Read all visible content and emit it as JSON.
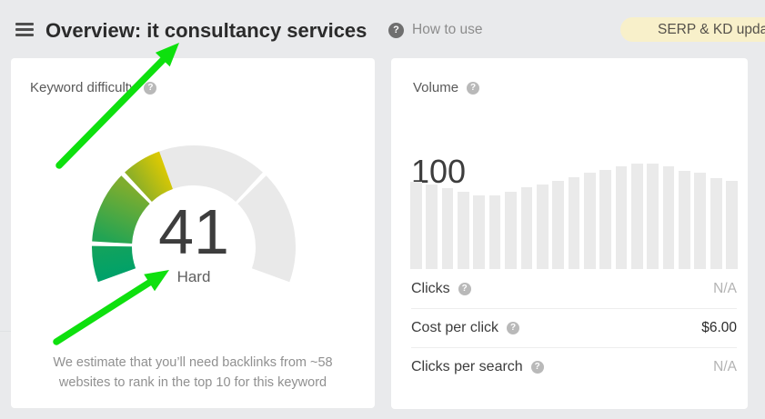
{
  "header": {
    "title": "Overview: it consultancy services",
    "help_label": "How to use",
    "update_button_label": "SERP & KD updat",
    "update_button_bg": "#f8f0ca"
  },
  "icons": {
    "question": "?"
  },
  "annotations": {
    "arrow_color": "#0ee00e"
  },
  "kd_card": {
    "label": "Keyword difficulty",
    "footnote_line1": "We estimate that you’ll need backlinks from ~58",
    "footnote_line2": "websites to rank in the top 10 for this keyword"
  },
  "gauge": {
    "type": "gauge",
    "value": 41,
    "display_value": "41",
    "max": 100,
    "label": "Hard",
    "segment_boundaries": [
      10,
      30,
      70
    ],
    "start_angle_deg": 200,
    "end_angle_deg": -20,
    "track_color": "#e9e9e9",
    "colored_segments": [
      {
        "from": 0,
        "to": 9.4,
        "color_start": "#00a169",
        "color_end": "#12a35d"
      },
      {
        "from": 10.6,
        "to": 29.4,
        "color_start": "#21a454",
        "color_end": "#7ead2e"
      },
      {
        "from": 30.6,
        "to": 41,
        "color_start": "#8fb026",
        "color_end": "#d9c804"
      }
    ],
    "track_segments": [
      {
        "from": 41,
        "to": 69.4
      },
      {
        "from": 70.6,
        "to": 100
      }
    ]
  },
  "volume_card": {
    "label": "Volume",
    "value": "100",
    "rows": [
      {
        "label": "Clicks",
        "value": "N/A",
        "muted": true
      },
      {
        "label": "Cost per click",
        "value": "$6.00",
        "muted": false
      },
      {
        "label": "Clicks per search",
        "value": "N/A",
        "muted": true
      }
    ]
  },
  "chart_data": {
    "type": "bar",
    "title": "Search volume history sparkline (no axis labels shown)",
    "x_labels": [],
    "values_pct_of_max": [
      83,
      80,
      77,
      73,
      70,
      70,
      73,
      78,
      80,
      84,
      87,
      91,
      94,
      97,
      100,
      100,
      97,
      93,
      91,
      86,
      84
    ],
    "bar_color": "#eaeaea",
    "axes_visible": false,
    "grid": false
  }
}
